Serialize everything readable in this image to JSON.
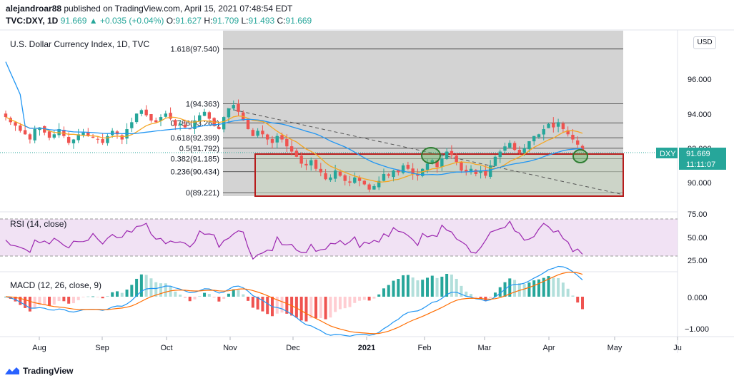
{
  "header": {
    "publisher": "alejandroar88",
    "published_text": " published on TradingView.com, April 15, 2021 07:48:54 EDT",
    "symbol": "TVC:DXY, 1D",
    "last": "91.669",
    "change": "▲ +0.035 (+0.04%)",
    "o_label": "O:",
    "o_val": "91.627",
    "h_label": "H:",
    "h_val": "91.709",
    "l_label": "L:",
    "l_val": "91.493",
    "c_label": "C:",
    "c_val": "91.669"
  },
  "main_pane": {
    "title": "U.S. Dollar Currency Index, 1D, TVC",
    "currency_button": "USD",
    "price_ticks": [
      "96.000",
      "94.000",
      "92.000",
      "90.000"
    ],
    "price_tag": {
      "symbol": "DXY",
      "price": "91.669",
      "countdown": "11:11:07"
    },
    "fib_levels": [
      {
        "label": "1.618(97.540)",
        "value": 97.54
      },
      {
        "label": "1(94.363)",
        "value": 94.363
      },
      {
        "label": "0.786(93.262)",
        "value": 93.262
      },
      {
        "label": "0.618(92.399)",
        "value": 92.399
      },
      {
        "label": "0.5(91.792)",
        "value": 91.792
      },
      {
        "label": "0.382(91.185)",
        "value": 91.185
      },
      {
        "label": "0.236(90.434)",
        "value": 90.434
      },
      {
        "label": "0(89.221)",
        "value": 89.221
      }
    ]
  },
  "rsi_pane": {
    "title": "RSI (14, close)",
    "ticks": [
      "75.00",
      "50.00",
      "25.00"
    ]
  },
  "macd_pane": {
    "title": "MACD (12, 26, close, 9)",
    "ticks": [
      "0.000",
      "−1.000"
    ]
  },
  "time_axis": [
    "Aug",
    "Sep",
    "Oct",
    "Nov",
    "Dec",
    "2021",
    "Feb",
    "Mar",
    "Apr",
    "May",
    "Ju"
  ],
  "footer": {
    "brand": "TradingView"
  },
  "colors": {
    "up": "#26a69a",
    "down": "#ef5350",
    "fib_box": "#c8c8c8",
    "support_box": "#b71c1c",
    "ma_fast": "#f5a623",
    "ma_slow": "#2196f3",
    "rsi": "#9c27b0",
    "macd": "#2196f3",
    "signal": "#ff6d00"
  },
  "chart_data": {
    "type": "candlestick",
    "price": [
      93.6,
      93.3,
      93.1,
      92.8,
      92.6,
      92.3,
      92.9,
      93.0,
      92.7,
      92.4,
      92.6,
      92.9,
      92.5,
      92.1,
      92.3,
      92.6,
      92.7,
      92.5,
      92.4,
      92.3,
      92.1,
      92.5,
      92.8,
      92.6,
      92.3,
      92.9,
      93.3,
      93.8,
      94.0,
      93.7,
      93.4,
      93.3,
      93.6,
      93.8,
      93.5,
      93.1,
      93.2,
      93.0,
      92.9,
      93.4,
      93.7,
      93.9,
      93.5,
      93.1,
      92.9,
      93.6,
      94.1,
      94.3,
      93.9,
      93.4,
      92.9,
      92.5,
      92.8,
      92.6,
      92.3,
      92.1,
      92.5,
      92.3,
      91.9,
      91.6,
      91.3,
      90.9,
      90.8,
      91.1,
      90.6,
      90.4,
      90.0,
      90.1,
      90.5,
      90.2,
      89.9,
      89.8,
      90.1,
      89.9,
      89.7,
      89.4,
      89.6,
      89.9,
      90.3,
      90.2,
      90.5,
      90.4,
      90.8,
      90.6,
      90.3,
      90.2,
      90.6,
      90.9,
      91.1,
      90.7,
      91.2,
      91.6,
      91.4,
      91.0,
      90.5,
      90.4,
      90.6,
      90.3,
      90.5,
      90.2,
      90.8,
      91.3,
      91.6,
      91.9,
      92.1,
      91.7,
      91.5,
      91.8,
      92.2,
      92.5,
      92.6,
      92.9,
      93.2,
      93.0,
      93.3,
      92.9,
      92.6,
      92.3,
      92.0,
      91.7
    ],
    "ylim": [
      88.4,
      98.6
    ]
  }
}
